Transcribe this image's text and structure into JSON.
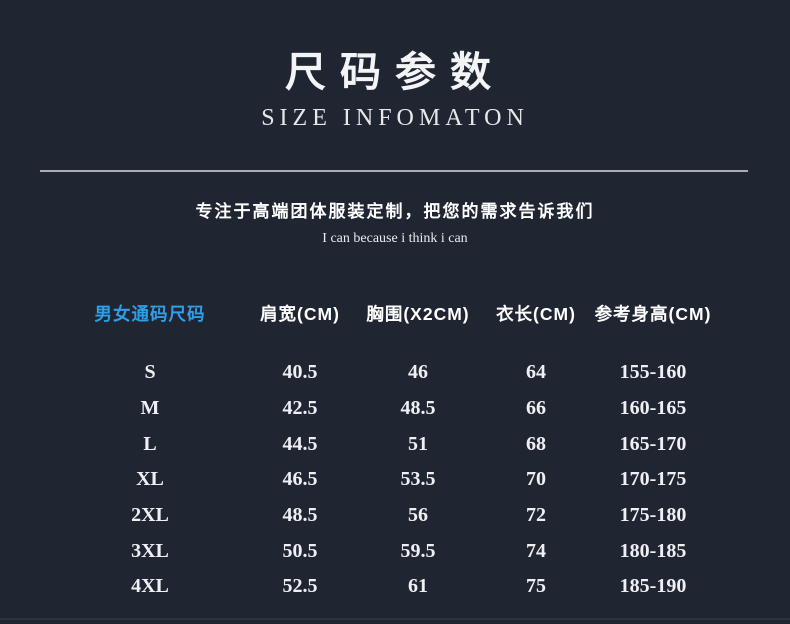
{
  "page": {
    "title_cn": "尺码参数",
    "title_en": "SIZE INFOMATON",
    "subtitle_cn": "专注于高端团体服装定制，把您的需求告诉我们",
    "subtitle_en": "I can because i think i can"
  },
  "colors": {
    "background": "#202532",
    "text_primary": "#ffffff",
    "accent_blue": "#2e9fe8",
    "divider_grey": "#a9aeb5"
  },
  "table": {
    "headers": [
      "男女通码尺码",
      "肩宽(CM)",
      "胸围(X2CM)",
      "衣长(CM)",
      "参考身高(CM)"
    ],
    "rows": [
      {
        "size": "S",
        "shoulder": "40.5",
        "chest": "46",
        "length": "64",
        "height": "155-160"
      },
      {
        "size": "M",
        "shoulder": "42.5",
        "chest": "48.5",
        "length": "66",
        "height": "160-165"
      },
      {
        "size": "L",
        "shoulder": "44.5",
        "chest": "51",
        "length": "68",
        "height": "165-170"
      },
      {
        "size": "XL",
        "shoulder": "46.5",
        "chest": "53.5",
        "length": "70",
        "height": "170-175"
      },
      {
        "size": "2XL",
        "shoulder": "48.5",
        "chest": "56",
        "length": "72",
        "height": "175-180"
      },
      {
        "size": "3XL",
        "shoulder": "50.5",
        "chest": "59.5",
        "length": "74",
        "height": "180-185"
      },
      {
        "size": "4XL",
        "shoulder": "52.5",
        "chest": "61",
        "length": "75",
        "height": "185-190"
      }
    ]
  }
}
